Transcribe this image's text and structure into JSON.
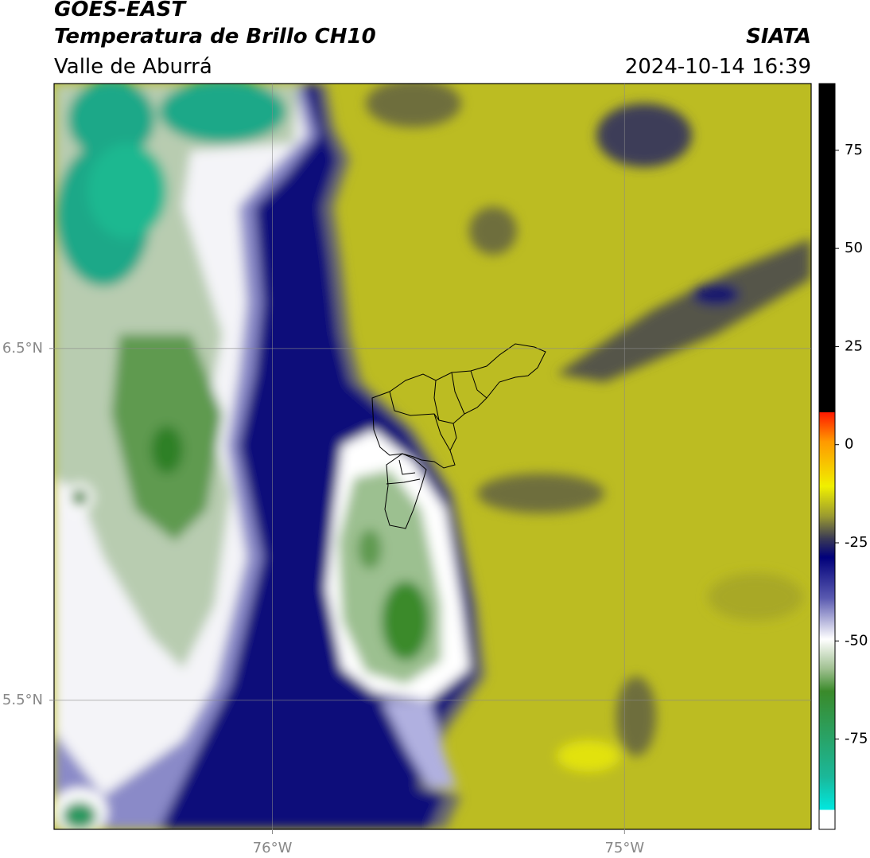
{
  "chart_data": {
    "type": "map",
    "title": "GOES-EAST",
    "subtitle": "Temperatura de Brillo CH10",
    "region": "Valle de Aburrá",
    "source": "SIATA",
    "timestamp": "2024-10-14 16:39",
    "xlim": [
      -76.62,
      -74.47
    ],
    "ylim": [
      5.133,
      7.253
    ],
    "xticks": [
      {
        "value": -76,
        "label": "76°W"
      },
      {
        "value": -75,
        "label": "75°W"
      }
    ],
    "yticks": [
      {
        "value": 5.5,
        "label": "5.5°N"
      },
      {
        "value": 6.5,
        "label": "6.5°N"
      }
    ],
    "grid": true,
    "colorbar": {
      "lim": [
        -98,
        92
      ],
      "ticks": [
        -75,
        -50,
        -25,
        0,
        25,
        50,
        75
      ]
    }
  }
}
